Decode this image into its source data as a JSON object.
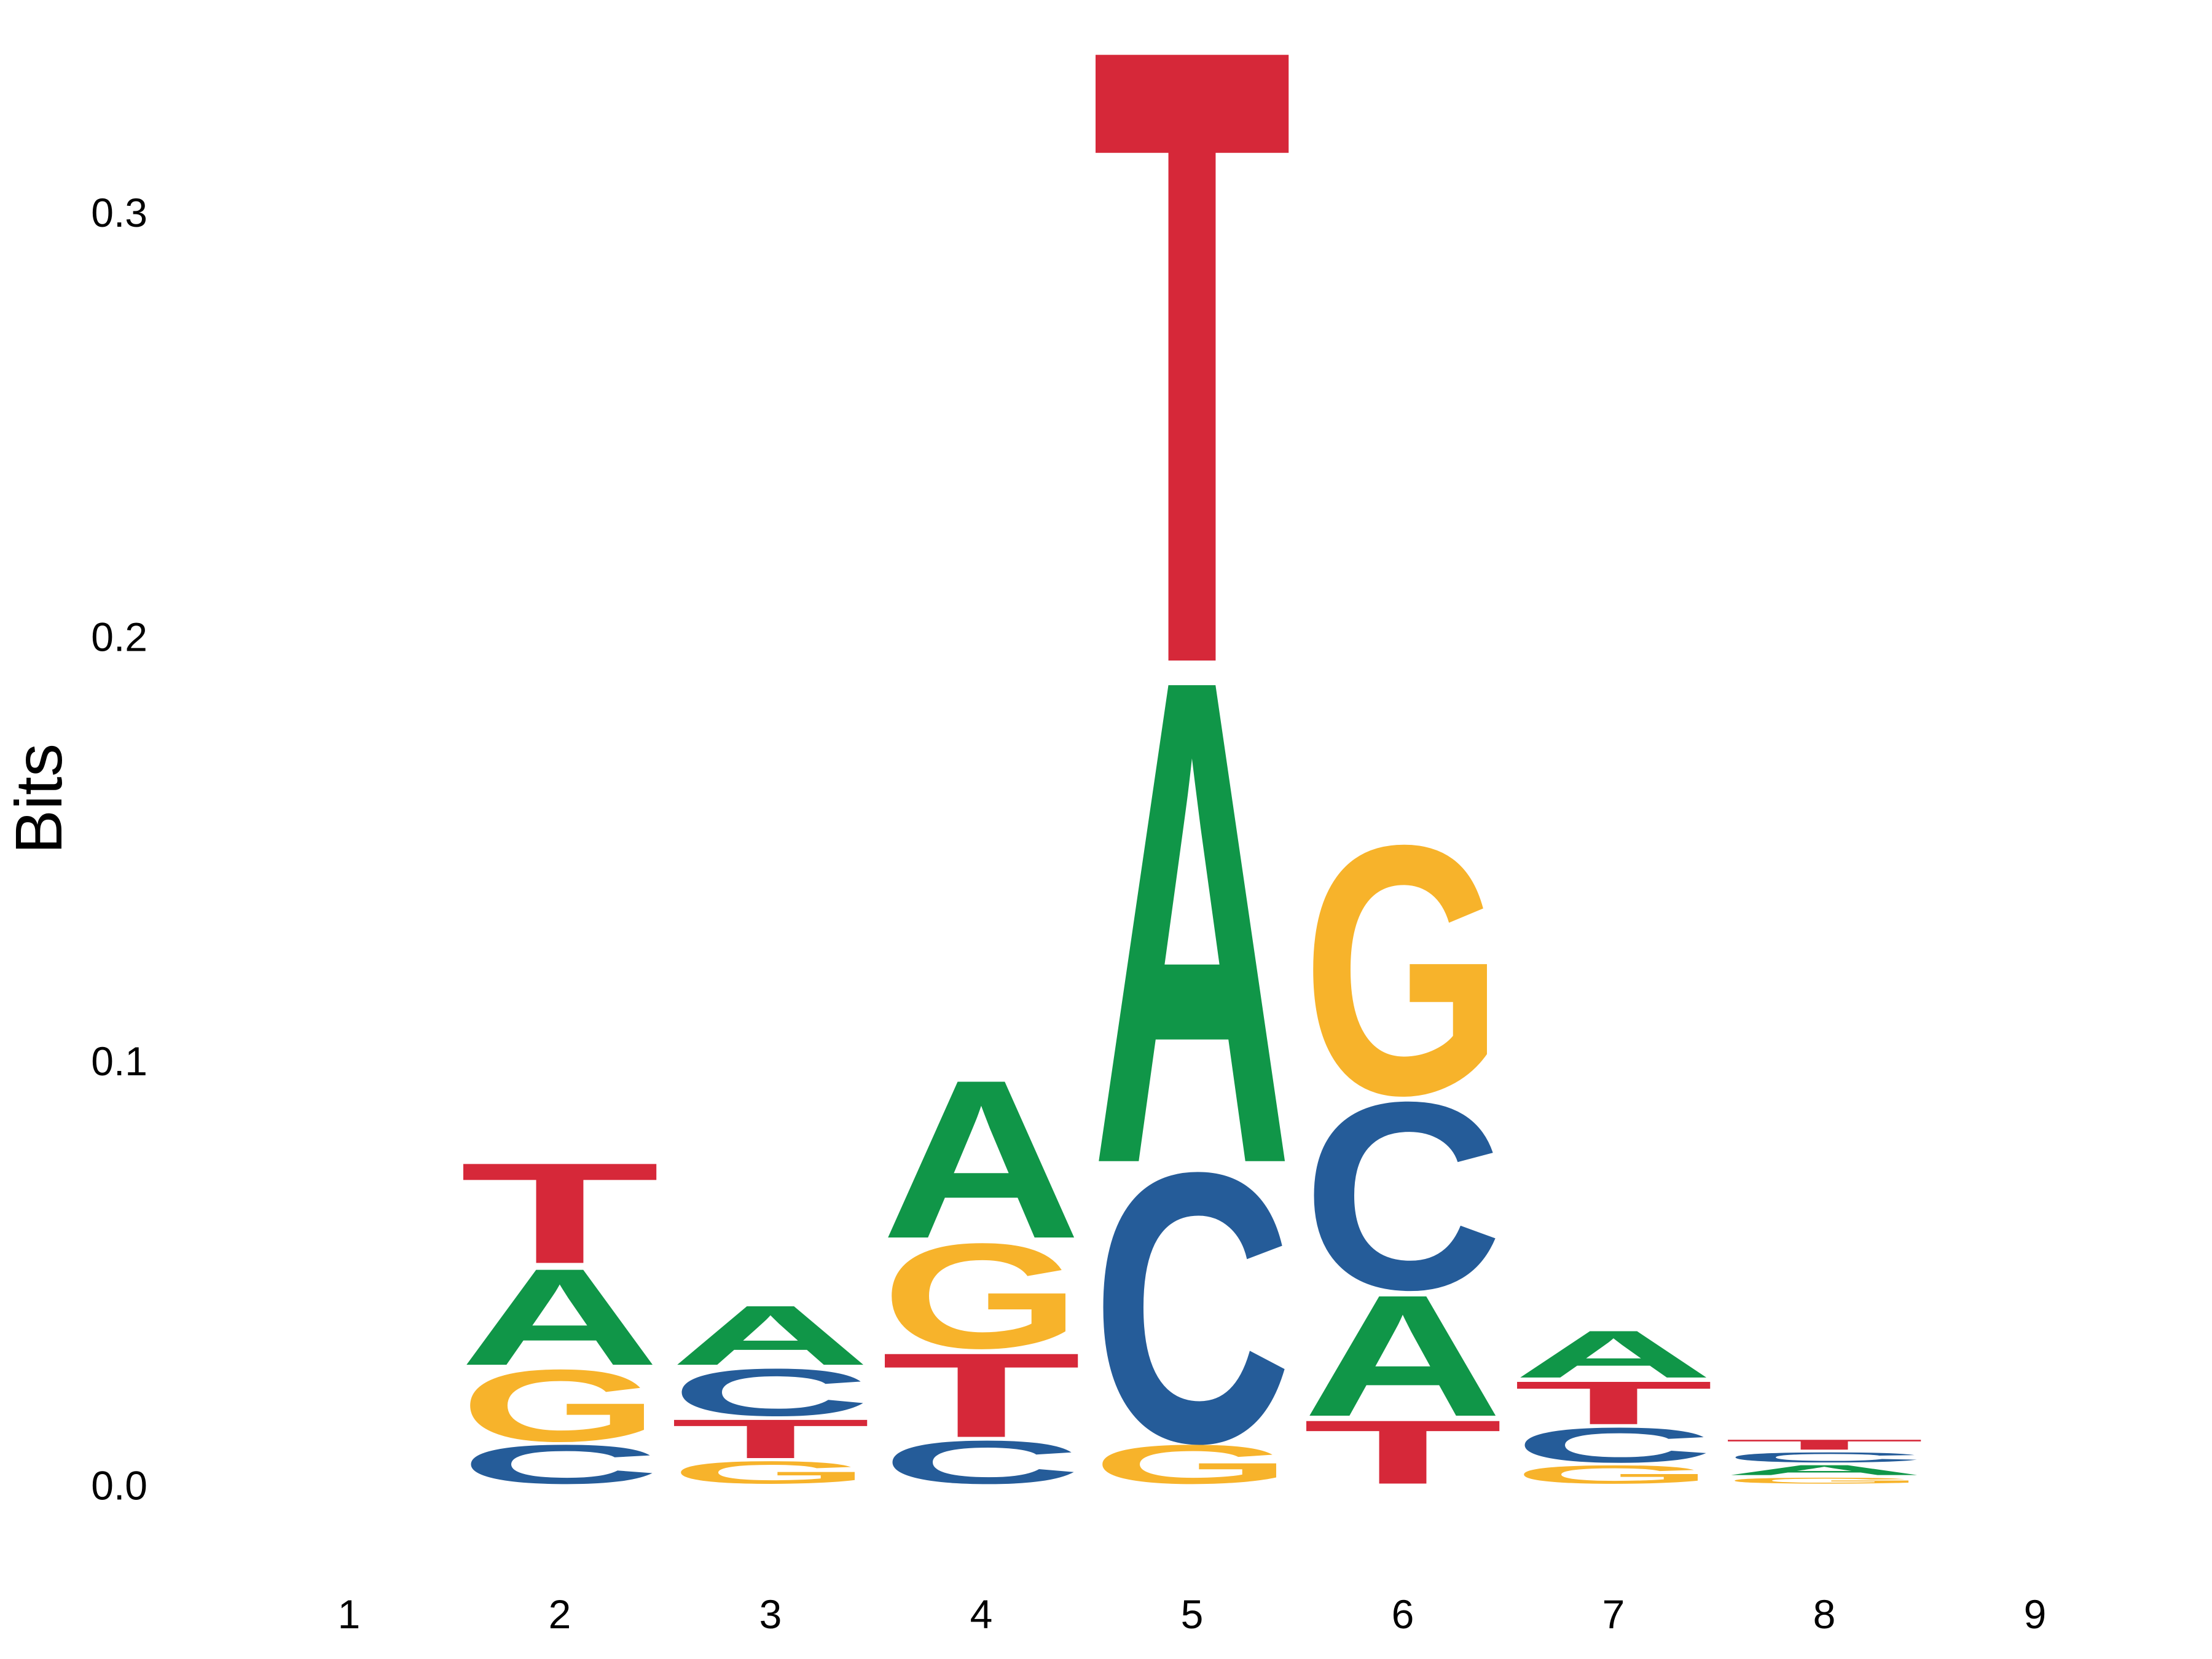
{
  "chart_data": {
    "type": "sequence_logo",
    "title": "",
    "xlabel": "",
    "ylabel": "Bits",
    "ylim": [
      -0.015,
      0.35
    ],
    "y_ticks": [
      "0.0",
      "0.1",
      "0.2",
      "0.3"
    ],
    "y_tick_values": [
      0.0,
      0.1,
      0.2,
      0.3
    ],
    "x_ticks": [
      "1",
      "2",
      "3",
      "4",
      "5",
      "6",
      "7",
      "8",
      "9"
    ],
    "grid": false,
    "colors": {
      "A": "#109648",
      "C": "#255C99",
      "G": "#F7B32B",
      "T": "#D62839"
    },
    "positions": [
      {
        "position": "1",
        "stack": []
      },
      {
        "position": "2",
        "stack": [
          {
            "letter": "C",
            "bits": 0.01
          },
          {
            "letter": "G",
            "bits": 0.018
          },
          {
            "letter": "A",
            "bits": 0.024
          },
          {
            "letter": "T",
            "bits": 0.025
          }
        ]
      },
      {
        "position": "3",
        "stack": [
          {
            "letter": "G",
            "bits": 0.006
          },
          {
            "letter": "T",
            "bits": 0.01
          },
          {
            "letter": "C",
            "bits": 0.012
          },
          {
            "letter": "A",
            "bits": 0.015
          }
        ]
      },
      {
        "position": "4",
        "stack": [
          {
            "letter": "C",
            "bits": 0.011
          },
          {
            "letter": "T",
            "bits": 0.021
          },
          {
            "letter": "G",
            "bits": 0.026
          },
          {
            "letter": "A",
            "bits": 0.039
          }
        ]
      },
      {
        "position": "5",
        "stack": [
          {
            "letter": "G",
            "bits": 0.01
          },
          {
            "letter": "C",
            "bits": 0.066
          },
          {
            "letter": "A",
            "bits": 0.118
          },
          {
            "letter": "T",
            "bits": 0.15
          }
        ]
      },
      {
        "position": "6",
        "stack": [
          {
            "letter": "T",
            "bits": 0.016
          },
          {
            "letter": "A",
            "bits": 0.03
          },
          {
            "letter": "C",
            "bits": 0.046
          },
          {
            "letter": "G",
            "bits": 0.061
          }
        ]
      },
      {
        "position": "7",
        "stack": [
          {
            "letter": "G",
            "bits": 0.005
          },
          {
            "letter": "C",
            "bits": 0.009
          },
          {
            "letter": "T",
            "bits": 0.011
          },
          {
            "letter": "A",
            "bits": 0.012
          }
        ]
      },
      {
        "position": "8",
        "stack": [
          {
            "letter": "G",
            "bits": 0.002
          },
          {
            "letter": "A",
            "bits": 0.003
          },
          {
            "letter": "C",
            "bits": 0.003
          },
          {
            "letter": "T",
            "bits": 0.003
          }
        ]
      },
      {
        "position": "9",
        "stack": []
      }
    ]
  }
}
